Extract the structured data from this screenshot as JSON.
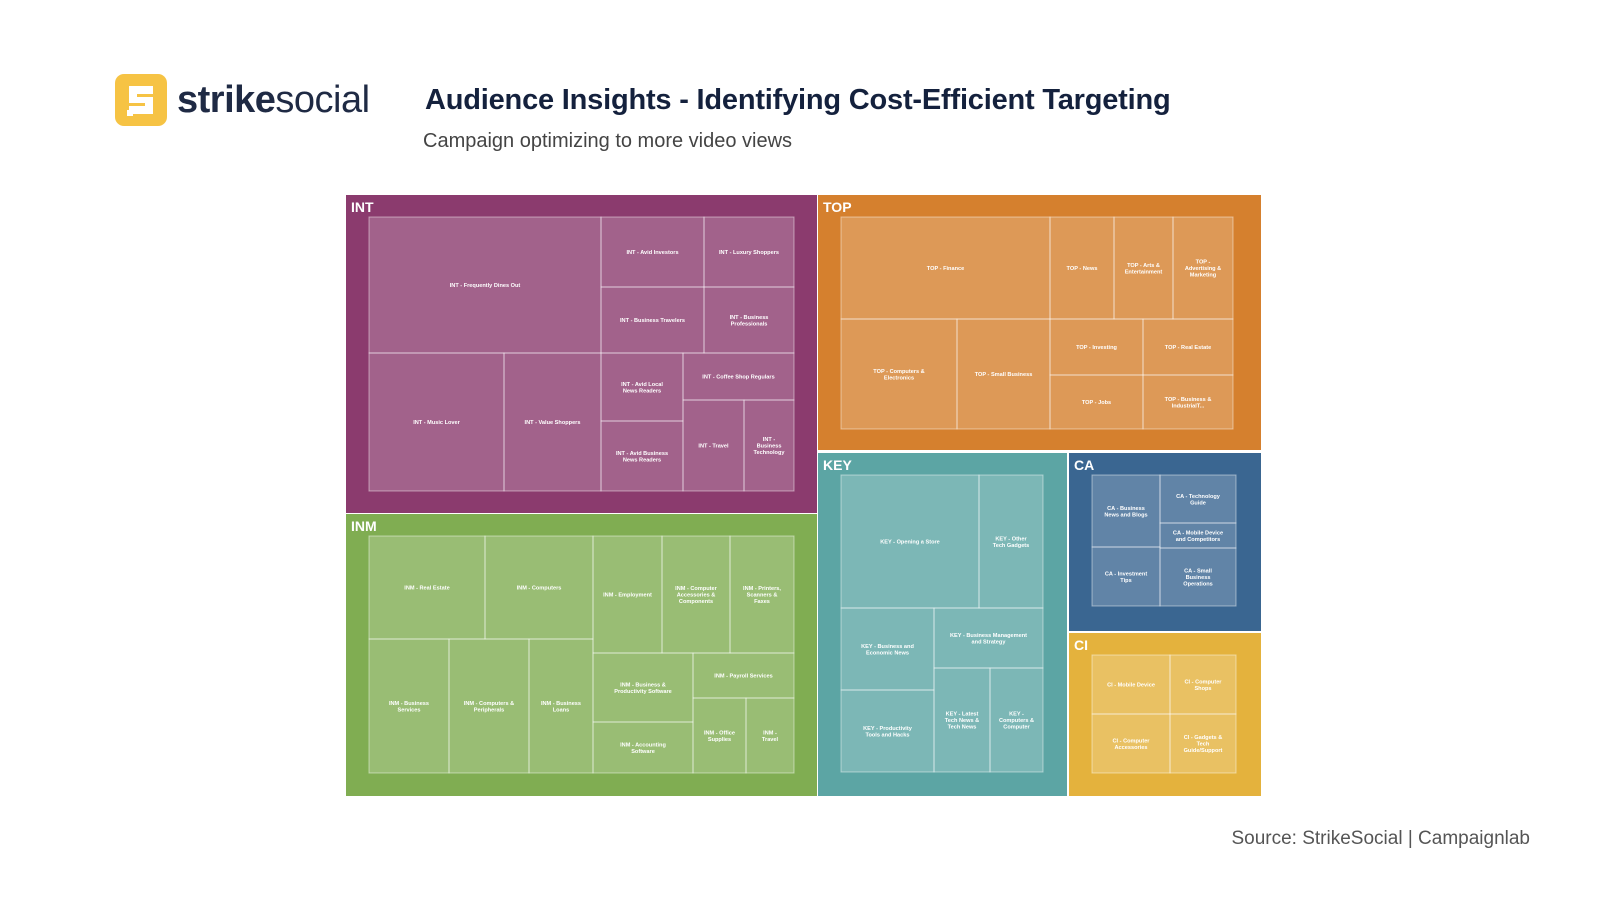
{
  "header": {
    "brand_bold": "strike",
    "brand_light": "social",
    "title": "Audience Insights - Identifying Cost-Efficient Targeting",
    "subtitle": "Campaign optimizing to more video views"
  },
  "footer": {
    "source": "Source:  StrikeSocial | Campaignlab"
  },
  "colors": {
    "logo": "#F6C344",
    "INT": "#8B3B6E",
    "TOP": "#D5802E",
    "INM": "#80AD52",
    "KEY": "#5CA5A4",
    "CA": "#3A6691",
    "CI": "#E4B23D"
  },
  "chart_data": {
    "type": "treemap",
    "title": "Audience Insights - Identifying Cost-Efficient Targeting",
    "groups": [
      {
        "name": "INT",
        "color": "#8B3B6E",
        "tiles": [
          {
            "label": "INT - Frequently Dines Out",
            "value": 14.0
          },
          {
            "label": "INT - Avid Investors",
            "value": 3.6
          },
          {
            "label": "INT - Luxury Shoppers",
            "value": 3.2
          },
          {
            "label": "INT - Business Travelers",
            "value": 3.6
          },
          {
            "label": "INT - Business Professionals",
            "value": 3.2
          },
          {
            "label": "INT - Music Lover",
            "value": 8.0
          },
          {
            "label": "INT - Value Shoppers",
            "value": 5.6
          },
          {
            "label": "INT - Avid Local News Readers",
            "value": 3.0
          },
          {
            "label": "INT - Coffee Shop Regulars",
            "value": 2.8
          },
          {
            "label": "INT - Avid Business News Readers",
            "value": 3.0
          },
          {
            "label": "INT - Travel",
            "value": 2.0
          },
          {
            "label": "INT - Business Technology",
            "value": 1.7
          }
        ]
      },
      {
        "name": "TOP",
        "color": "#D5802E",
        "tiles": [
          {
            "label": "TOP - Finance",
            "value": 11.5
          },
          {
            "label": "TOP - News",
            "value": 3.5
          },
          {
            "label": "TOP - Arts & Entertainment",
            "value": 3.3
          },
          {
            "label": "TOP - Advertising & Marketing",
            "value": 3.3
          },
          {
            "label": "TOP - Computers & Electronics",
            "value": 6.8
          },
          {
            "label": "TOP - Small Business",
            "value": 5.6
          },
          {
            "label": "TOP - Investing",
            "value": 2.9
          },
          {
            "label": "TOP - Real Estate",
            "value": 2.9
          },
          {
            "label": "TOP - Jobs",
            "value": 2.6
          },
          {
            "label": "TOP - Business & IndustrialT...",
            "value": 2.0
          }
        ]
      },
      {
        "name": "INM",
        "color": "#80AD52",
        "tiles": [
          {
            "label": "INM - Real Estate",
            "value": 5.6
          },
          {
            "label": "INM - Computers",
            "value": 5.2
          },
          {
            "label": "INM - Employment",
            "value": 3.7
          },
          {
            "label": "INM - Computer Accessories & Components",
            "value": 3.7
          },
          {
            "label": "INM - Printers, Scanners & Faxes",
            "value": 3.4
          },
          {
            "label": "INM - Business Services",
            "value": 5.2
          },
          {
            "label": "INM - Computers & Peripherals",
            "value": 5.0
          },
          {
            "label": "INM - Business Loans",
            "value": 4.8
          },
          {
            "label": "INM - Business & Productivity Software",
            "value": 3.3
          },
          {
            "label": "INM - Payroll Services",
            "value": 2.7
          },
          {
            "label": "INM - Accounting Software",
            "value": 3.0
          },
          {
            "label": "INM - Office Supplies",
            "value": 1.5
          },
          {
            "label": "INM - Travel",
            "value": 1.7
          }
        ]
      },
      {
        "name": "KEY",
        "color": "#5CA5A4",
        "tiles": [
          {
            "label": "KEY - Opening a Store",
            "value": 5.5
          },
          {
            "label": "KEY - Other Tech Gadgets",
            "value": 2.7
          },
          {
            "label": "KEY - Business and Economic News",
            "value": 2.7
          },
          {
            "label": "KEY - Business Management and Strategy",
            "value": 3.2
          },
          {
            "label": "KEY - Productivity Tools and Hacks",
            "value": 3.1
          },
          {
            "label": "KEY - Latest Tech News & Tech News Sites",
            "value": 2.0
          },
          {
            "label": "KEY - Computers & Computer Accessories",
            "value": 2.0
          }
        ]
      },
      {
        "name": "CA",
        "color": "#3A6691",
        "tiles": [
          {
            "label": "CA - Business News and Blogs",
            "value": 1.9
          },
          {
            "label": "CA - Technology Guide",
            "value": 1.7
          },
          {
            "label": "CA - Mobile Device and Competitors",
            "value": 1.1
          },
          {
            "label": "CA - Investment Tips",
            "value": 1.8
          },
          {
            "label": "CA - Small Business Operations",
            "value": 1.1
          }
        ]
      },
      {
        "name": "CI",
        "color": "#E4B23D",
        "tiles": [
          {
            "label": "CI - Mobile Device",
            "value": 2.0
          },
          {
            "label": "CI - Computer Shops",
            "value": 1.9
          },
          {
            "label": "CI - Computer Accessories",
            "value": 1.9
          },
          {
            "label": "CI - Gadgets & Tech Guide/Support",
            "value": 1.8
          }
        ]
      }
    ]
  }
}
